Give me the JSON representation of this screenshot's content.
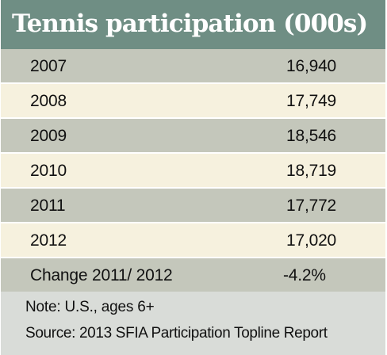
{
  "chart_data": {
    "type": "table",
    "title": "Tennis participation (000s)",
    "columns": [
      "",
      ""
    ],
    "rows": [
      {
        "year": "2007",
        "value": "16,940"
      },
      {
        "year": "2008",
        "value": "17,749"
      },
      {
        "year": "2009",
        "value": "18,546"
      },
      {
        "year": "2010",
        "value": "18,719"
      },
      {
        "year": "2011",
        "value": "17,772"
      },
      {
        "year": "2012",
        "value": "17,020"
      }
    ],
    "x": [
      2007,
      2008,
      2009,
      2010,
      2011,
      2012
    ],
    "values": [
      16940,
      17749,
      18546,
      18719,
      17772,
      17020
    ],
    "change": {
      "label": "Change 2011/ 2012",
      "value": "-4.2%"
    },
    "note": "Note: U.S., ages 6+",
    "source": "Source: 2013 SFIA Participation Topline Report"
  },
  "colors": {
    "header": "#6f8e84",
    "row_dark": "#c4c7bb",
    "row_light": "#f6f1de",
    "footer": "#d9dcd8",
    "text": "#111111",
    "title_text": "#ffffff"
  }
}
